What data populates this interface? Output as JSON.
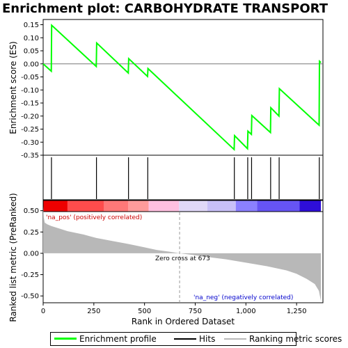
{
  "chart_data": {
    "type": "line",
    "title": "Enrichment plot: CARBOHYDRATE TRANSPORT",
    "xlabel": "Rank in Ordered Dataset",
    "xlim": [
      0,
      1380
    ],
    "x_ticks": [
      0,
      250,
      500,
      750,
      1000,
      1250
    ],
    "x_tick_labels": [
      "0",
      "250",
      "500",
      "750",
      "1,000",
      "1,250"
    ],
    "enrichment_panel": {
      "ylabel": "Enrichment score (ES)",
      "ylim": [
        -0.35,
        0.17
      ],
      "y_ticks": [
        0.15,
        0.1,
        0.05,
        0.0,
        -0.05,
        -0.1,
        -0.15,
        -0.2,
        -0.25,
        -0.3,
        -0.35
      ],
      "y_tick_labels": [
        "0.15",
        "0.10",
        "0.05",
        "0.00",
        "-0.05",
        "-0.10",
        "-0.15",
        "-0.20",
        "-0.25",
        "-0.30",
        "-0.35"
      ],
      "series": [
        {
          "name": "Enrichment profile",
          "color": "#00ff00",
          "x": [
            0,
            40,
            42,
            262,
            264,
            420,
            422,
            515,
            517,
            942,
            944,
            1008,
            1010,
            1027,
            1029,
            1121,
            1123,
            1163,
            1165,
            1361,
            1363,
            1370
          ],
          "y": [
            0.0,
            -0.028,
            0.148,
            -0.01,
            0.08,
            -0.035,
            0.02,
            -0.048,
            -0.018,
            -0.328,
            -0.275,
            -0.325,
            -0.258,
            -0.27,
            -0.198,
            -0.263,
            -0.168,
            -0.2,
            -0.095,
            -0.235,
            0.01,
            0.005
          ]
        }
      ]
    },
    "hits": {
      "name": "Hits",
      "color": "#000000",
      "x": [
        41,
        263,
        421,
        516,
        943,
        1009,
        1028,
        1122,
        1164,
        1362
      ]
    },
    "color_bar": {
      "segments": [
        {
          "from": 0,
          "to": 120,
          "color": "#ee0000"
        },
        {
          "from": 120,
          "to": 300,
          "color": "#ff4c4c"
        },
        {
          "from": 300,
          "to": 420,
          "color": "#ff7878"
        },
        {
          "from": 420,
          "to": 520,
          "color": "#ff9b9b"
        },
        {
          "from": 520,
          "to": 670,
          "color": "#ffc0e0"
        },
        {
          "from": 670,
          "to": 810,
          "color": "#e0d8f8"
        },
        {
          "from": 810,
          "to": 950,
          "color": "#c8c0f8"
        },
        {
          "from": 950,
          "to": 1055,
          "color": "#8b80ff"
        },
        {
          "from": 1055,
          "to": 1265,
          "color": "#6654f4"
        },
        {
          "from": 1265,
          "to": 1370,
          "color": "#2e0ed8"
        }
      ]
    },
    "metric_panel": {
      "ylabel": "Ranked list metric (PreRanked)",
      "ylim": [
        -0.58,
        0.62
      ],
      "y_ticks": [
        0.5,
        0.25,
        0.0,
        -0.25,
        -0.5
      ],
      "y_tick_labels": [
        "0.50",
        "0.25",
        "0.00",
        "-0.25",
        "-0.50"
      ],
      "series": [
        {
          "name": "Ranking metric scores",
          "color": "#b8b8b8",
          "x": [
            0,
            3,
            8,
            20,
            40,
            80,
            120,
            200,
            262,
            350,
            420,
            500,
            560,
            620,
            673,
            740,
            800,
            900,
            1000,
            1100,
            1200,
            1250,
            1300,
            1340,
            1360,
            1370
          ],
          "y": [
            0.55,
            0.42,
            0.36,
            0.34,
            0.32,
            0.29,
            0.26,
            0.22,
            0.18,
            0.14,
            0.11,
            0.07,
            0.04,
            0.02,
            0.0,
            -0.02,
            -0.04,
            -0.07,
            -0.11,
            -0.15,
            -0.2,
            -0.24,
            -0.3,
            -0.36,
            -0.44,
            -0.56
          ]
        }
      ],
      "annotations": {
        "pos_label": "'na_pos' (positively correlated)",
        "neg_label": "'na_neg' (negatively correlated)",
        "zero_cross_label": "Zero cross at 673",
        "zero_cross_x": 673,
        "pos_color": "#cc0000",
        "neg_color": "#0000cc"
      }
    }
  },
  "legend": {
    "items": [
      {
        "label": "Enrichment profile",
        "color": "#00ff00"
      },
      {
        "label": "Hits",
        "color": "#000000"
      },
      {
        "label": "Ranking metric scores",
        "color": "#b8b8b8"
      }
    ]
  }
}
